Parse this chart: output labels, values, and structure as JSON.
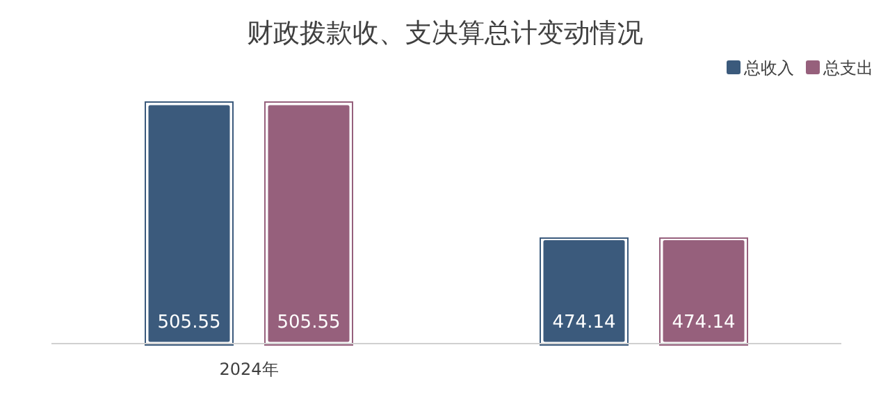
{
  "chart_data": {
    "type": "bar",
    "title": "财政拨款收、支决算总计变动情况",
    "categories": [
      "2024年",
      null
    ],
    "series": [
      {
        "name": "总收入",
        "color": "#3b5a7c",
        "values": [
          505.55,
          474.14
        ]
      },
      {
        "name": "总支出",
        "color": "#96607c",
        "values": [
          505.55,
          474.14
        ]
      }
    ],
    "ylim": [
      450,
      505.55
    ],
    "data_labels": true,
    "legend": "top right",
    "grid": false
  }
}
